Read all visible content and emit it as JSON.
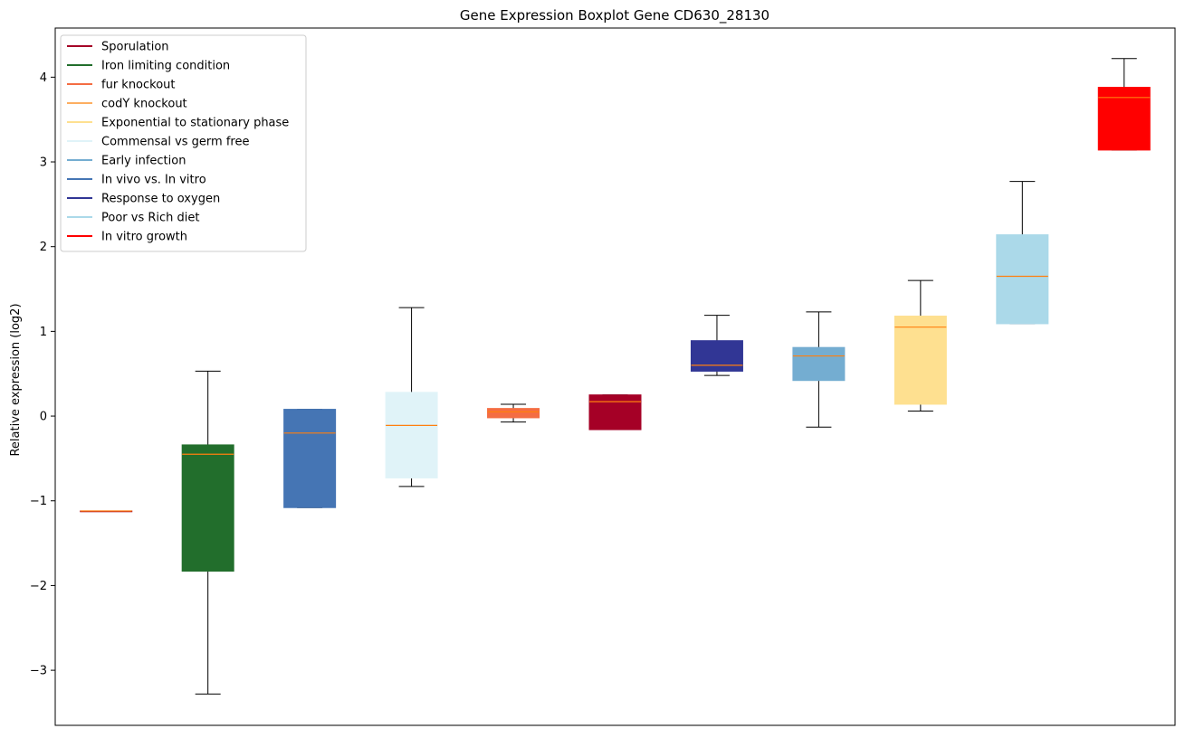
{
  "chart_data": {
    "type": "boxplot",
    "title": "Gene Expression Boxplot Gene CD630_28130",
    "xlabel": "",
    "ylabel": "Relative expression (log2)",
    "ylim": [
      -3.65,
      4.58
    ],
    "yticks": [
      -3,
      -2,
      -1,
      0,
      1,
      2,
      3,
      4
    ],
    "ytick_labels": [
      "−3",
      "−2",
      "−1",
      "0",
      "1",
      "2",
      "3",
      "4"
    ],
    "grid": false,
    "legend_position": "top-left",
    "median_color": "#ff7f0e",
    "whisker_color": "#000000",
    "boxes": [
      {
        "name": "Sporulation",
        "color": "#a50026",
        "whislo": -1.12,
        "q1": -1.12,
        "med": -1.12,
        "q3": -1.12,
        "whishi": -1.12
      },
      {
        "name": "Iron limiting condition",
        "color": "#226e2c",
        "whislo": -3.28,
        "q1": -1.83,
        "med": -0.45,
        "q3": -0.34,
        "whishi": 0.53
      },
      {
        "name": "In vivo vs. In vitro",
        "color": "#4575b4",
        "whislo": -1.08,
        "q1": -1.08,
        "med": -0.2,
        "q3": 0.08,
        "whishi": 0.08
      },
      {
        "name": "Commensal vs germ free",
        "color": "#e0f3f8",
        "whislo": -0.83,
        "q1": -0.73,
        "med": -0.11,
        "q3": 0.28,
        "whishi": 1.28
      },
      {
        "name": "fur knockout",
        "color": "#f46d43",
        "whislo": -0.07,
        "q1": -0.02,
        "med": 0.05,
        "q3": 0.09,
        "whishi": 0.14
      },
      {
        "name": "Sporulation",
        "color": "#a50026",
        "whislo": -0.16,
        "q1": -0.16,
        "med": 0.17,
        "q3": 0.25,
        "whishi": 0.25
      },
      {
        "name": "Response to oxygen",
        "color": "#313695",
        "whislo": 0.48,
        "q1": 0.53,
        "med": 0.6,
        "q3": 0.89,
        "whishi": 1.19
      },
      {
        "name": "Early infection",
        "color": "#74add1",
        "whislo": -0.13,
        "q1": 0.42,
        "med": 0.71,
        "q3": 0.81,
        "whishi": 1.23
      },
      {
        "name": "Exponential to stationary phase",
        "color": "#fee090",
        "whislo": 0.06,
        "q1": 0.14,
        "med": 1.05,
        "q3": 1.18,
        "whishi": 1.6
      },
      {
        "name": "Poor vs Rich diet",
        "color": "#abd9e9",
        "whislo": 1.09,
        "q1": 1.09,
        "med": 1.65,
        "q3": 2.14,
        "whishi": 2.77
      },
      {
        "name": "In vitro growth",
        "color": "#ff0000",
        "whislo": 3.14,
        "q1": 3.14,
        "med": 3.76,
        "q3": 3.88,
        "whishi": 4.22
      }
    ],
    "legend": [
      {
        "label": "Sporulation",
        "color": "#a50026"
      },
      {
        "label": "Iron limiting condition",
        "color": "#226e2c"
      },
      {
        "label": "fur knockout",
        "color": "#f46d43"
      },
      {
        "label": "codY knockout",
        "color": "#fdae61"
      },
      {
        "label": "Exponential to stationary phase",
        "color": "#fee090"
      },
      {
        "label": "Commensal vs germ free",
        "color": "#e0f3f8"
      },
      {
        "label": "Early infection",
        "color": "#74add1"
      },
      {
        "label": "In vivo vs. In vitro",
        "color": "#4575b4"
      },
      {
        "label": "Response to oxygen",
        "color": "#313695"
      },
      {
        "label": "Poor vs Rich diet",
        "color": "#abd9e9"
      },
      {
        "label": "In vitro growth",
        "color": "#ff0000"
      }
    ]
  }
}
